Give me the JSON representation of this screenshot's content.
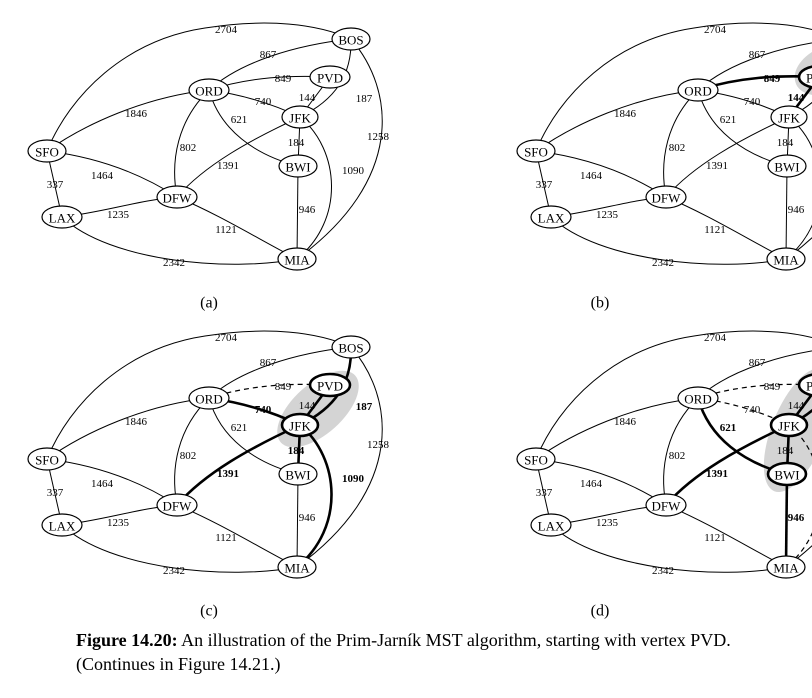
{
  "vertices": [
    "SFO",
    "LAX",
    "DFW",
    "ORD",
    "PVD",
    "BOS",
    "JFK",
    "BWI",
    "MIA"
  ],
  "edges": [
    {
      "id": "SFO-BOS",
      "u": "SFO",
      "v": "BOS",
      "weight": "2704"
    },
    {
      "id": "SFO-ORD",
      "u": "SFO",
      "v": "ORD",
      "weight": "1846"
    },
    {
      "id": "SFO-DFW",
      "u": "SFO",
      "v": "DFW",
      "weight": "1464"
    },
    {
      "id": "SFO-LAX",
      "u": "SFO",
      "v": "LAX",
      "weight": "337"
    },
    {
      "id": "LAX-DFW",
      "u": "LAX",
      "v": "DFW",
      "weight": "1235"
    },
    {
      "id": "LAX-MIA",
      "u": "LAX",
      "v": "MIA",
      "weight": "2342"
    },
    {
      "id": "ORD-BOS",
      "u": "ORD",
      "v": "BOS",
      "weight": "867"
    },
    {
      "id": "ORD-PVD",
      "u": "ORD",
      "v": "PVD",
      "weight": "849"
    },
    {
      "id": "ORD-JFK",
      "u": "ORD",
      "v": "JFK",
      "weight": "740"
    },
    {
      "id": "ORD-BWI",
      "u": "ORD",
      "v": "BWI",
      "weight": "621"
    },
    {
      "id": "ORD-DFW",
      "u": "ORD",
      "v": "DFW",
      "weight": "802"
    },
    {
      "id": "PVD-JFK",
      "u": "PVD",
      "v": "JFK",
      "weight": "144"
    },
    {
      "id": "BOS-JFK",
      "u": "BOS",
      "v": "JFK",
      "weight": "187"
    },
    {
      "id": "BOS-MIA",
      "u": "BOS",
      "v": "MIA",
      "weight": "1258"
    },
    {
      "id": "JFK-BWI",
      "u": "JFK",
      "v": "BWI",
      "weight": "184"
    },
    {
      "id": "JFK-DFW",
      "u": "JFK",
      "v": "DFW",
      "weight": "1391"
    },
    {
      "id": "JFK-MIA",
      "u": "JFK",
      "v": "MIA",
      "weight": "1090"
    },
    {
      "id": "BWI-MIA",
      "u": "BWI",
      "v": "MIA",
      "weight": "946"
    },
    {
      "id": "DFW-MIA",
      "u": "DFW",
      "v": "MIA",
      "weight": "1121"
    }
  ],
  "panels": [
    {
      "label": "(a)",
      "tree_vertices": [],
      "tree_edges": [],
      "bold_labels": [],
      "dashed_edges": []
    },
    {
      "label": "(b)",
      "tree_vertices": [
        "PVD"
      ],
      "tree_edges": [
        "ORD-PVD",
        "PVD-JFK"
      ],
      "bold_labels": [
        "ORD-PVD",
        "PVD-JFK"
      ],
      "dashed_edges": []
    },
    {
      "label": "(c)",
      "tree_vertices": [
        "PVD",
        "JFK"
      ],
      "tree_edges": [
        "PVD-JFK",
        "ORD-JFK",
        "BOS-JFK",
        "JFK-BWI",
        "JFK-DFW",
        "JFK-MIA"
      ],
      "bold_labels": [
        "ORD-JFK",
        "BOS-JFK",
        "JFK-BWI",
        "JFK-DFW",
        "JFK-MIA"
      ],
      "dashed_edges": [
        "ORD-PVD"
      ]
    },
    {
      "label": "(d)",
      "tree_vertices": [
        "PVD",
        "JFK",
        "BWI"
      ],
      "tree_edges": [
        "PVD-JFK",
        "JFK-BWI",
        "BOS-JFK",
        "ORD-BWI",
        "JFK-DFW",
        "BWI-MIA"
      ],
      "bold_labels": [
        "BOS-JFK",
        "ORD-BWI",
        "JFK-DFW",
        "BWI-MIA"
      ],
      "dashed_edges": [
        "ORD-PVD",
        "ORD-JFK",
        "JFK-MIA"
      ]
    }
  ],
  "caption": {
    "label": "Figure 14.20:",
    "text": " An illustration of the Prim-Jarník MST algorithm, starting with vertex PVD. (Continues in Figure 14.21.)"
  }
}
